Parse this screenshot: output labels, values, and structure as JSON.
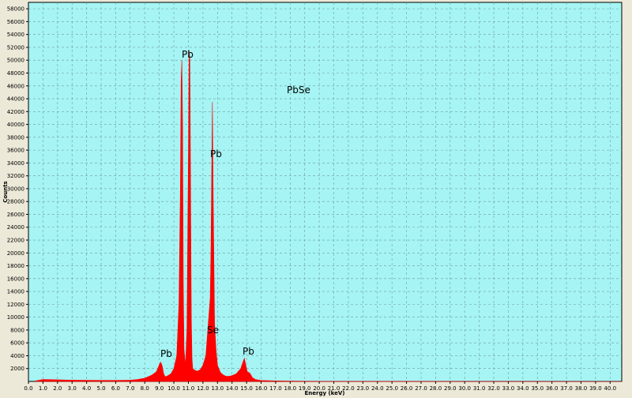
{
  "chart_data": {
    "type": "area",
    "title": "",
    "xlabel": "Energy (keV)",
    "ylabel": "Counts",
    "xlim": [
      0.0,
      40.8
    ],
    "ylim": [
      0,
      59000
    ],
    "x_ticks": [
      "0.0",
      "1.0",
      "2.0",
      "3.0",
      "4.0",
      "5.0",
      "6.0",
      "7.0",
      "8.0",
      "9.0",
      "10.0",
      "11.0",
      "12.0",
      "13.0",
      "14.0",
      "15.0",
      "16.0",
      "17.0",
      "18.0",
      "19.0",
      "20.0",
      "21.0",
      "22.0",
      "23.0",
      "24.0",
      "25.0",
      "26.0",
      "27.0",
      "28.0",
      "29.0",
      "30.0",
      "31.0",
      "32.0",
      "33.0",
      "34.0",
      "35.0",
      "36.0",
      "37.0",
      "38.0",
      "39.0",
      "40.0"
    ],
    "y_ticks": [
      "2000",
      "4000",
      "6000",
      "8000",
      "10000",
      "12000",
      "14000",
      "16000",
      "18000",
      "20000",
      "22000",
      "24000",
      "26000",
      "28000",
      "30000",
      "32000",
      "34000",
      "36000",
      "38000",
      "40000",
      "42000",
      "44000",
      "46000",
      "48000",
      "50000",
      "52000",
      "54000",
      "56000",
      "58000"
    ],
    "grid": true,
    "colors": {
      "plot_bg": "#a6f4f4",
      "fill": "#ff0000",
      "grid": "#6f9d9d"
    },
    "series": [
      {
        "x": [
          0.5,
          1.0,
          2.0,
          3.0,
          4.0,
          5.0,
          6.0,
          7.0,
          7.5,
          8.0,
          8.5,
          8.8,
          9.0,
          9.1,
          9.2,
          9.3,
          9.4,
          9.6,
          9.8,
          10.0,
          10.2,
          10.35,
          10.45,
          10.5,
          10.55,
          10.6,
          10.65,
          10.7,
          10.8,
          10.9,
          11.0,
          11.05,
          11.1,
          11.15,
          11.2,
          11.25,
          11.3,
          11.4,
          11.6,
          11.8,
          12.0,
          12.2,
          12.3,
          12.4,
          12.5,
          12.55,
          12.6,
          12.65,
          12.7,
          12.8,
          12.9,
          13.0,
          13.2,
          13.4,
          13.6,
          13.8,
          14.0,
          14.3,
          14.6,
          14.75,
          14.85,
          14.95,
          15.05,
          15.15,
          15.25,
          15.4,
          15.6,
          16.0,
          17.0,
          18.0,
          20.0,
          25.0,
          30.0,
          35.0,
          40.8
        ],
        "y": [
          100,
          300,
          250,
          200,
          180,
          160,
          170,
          200,
          300,
          500,
          1000,
          1500,
          2600,
          3000,
          2400,
          1200,
          700,
          900,
          1200,
          2000,
          4000,
          12000,
          30000,
          47000,
          50000,
          40000,
          15000,
          5000,
          2500,
          8000,
          35000,
          51500,
          50000,
          30000,
          10000,
          3500,
          2000,
          1800,
          1600,
          1800,
          2500,
          4000,
          7000,
          10000,
          13000,
          20000,
          32000,
          43500,
          30000,
          9000,
          5000,
          2500,
          1400,
          1000,
          800,
          800,
          900,
          1200,
          2000,
          3000,
          3600,
          2500,
          1500,
          1400,
          1200,
          600,
          300,
          150,
          80,
          50,
          30,
          20,
          10,
          5,
          0
        ]
      }
    ],
    "annotations": [
      "Pb",
      "Pb",
      "Pb",
      "Se",
      "Pb",
      "PbSe"
    ]
  }
}
